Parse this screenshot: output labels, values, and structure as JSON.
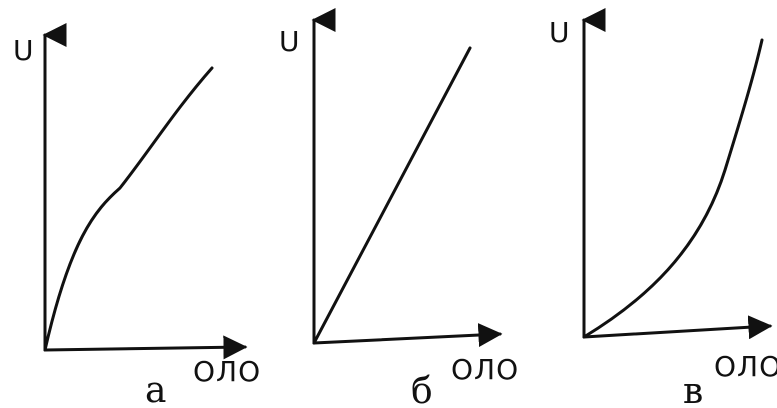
{
  "panels": [
    {
      "id": "a",
      "caption": "а",
      "y_axis_label": "U",
      "x_axis_label": "ОЛО",
      "curve_shape": "concave"
    },
    {
      "id": "b",
      "caption": "б",
      "y_axis_label": "U",
      "x_axis_label": "ОЛО",
      "curve_shape": "linear"
    },
    {
      "id": "c",
      "caption": "в",
      "y_axis_label": "U",
      "x_axis_label": "ОЛО",
      "curve_shape": "convex"
    }
  ],
  "colors": {
    "ink": "#111111",
    "background": "#ffffff"
  }
}
